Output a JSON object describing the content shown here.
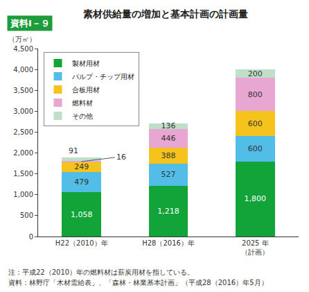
{
  "chart_data": {
    "type": "bar",
    "stacked": true,
    "label": "資料Ⅰ－９",
    "title": "素材供給量の増加と基本計画の計画量",
    "ylabel": "（万㎥）",
    "categories": [
      "H22（2010）年",
      "H28（2016）年",
      "2025 年\n（計画）"
    ],
    "series": [
      {
        "name": "製材用材",
        "color": "#12a339",
        "values": [
          1058,
          1218,
          1800
        ],
        "value_labels": [
          "1,058",
          "1,218",
          "1,800"
        ]
      },
      {
        "name": "パルプ・チップ用材",
        "color": "#52bde6",
        "values": [
          479,
          527,
          600
        ]
      },
      {
        "name": "合板用材",
        "color": "#f5c31c",
        "values": [
          249,
          388,
          600
        ]
      },
      {
        "name": "燃料材",
        "color": "#e8a6d2",
        "values": [
          16,
          446,
          800
        ]
      },
      {
        "name": "その他",
        "color": "#bfe0c8",
        "values": [
          91,
          136,
          200
        ]
      }
    ],
    "ylim": [
      0,
      4500
    ],
    "yticks": [
      0,
      500,
      {
        "value": 1000,
        "label": "1,000"
      },
      {
        "value": 1500,
        "label": "1,500"
      },
      {
        "value": 2000,
        "label": "2,000"
      },
      {
        "value": 2500,
        "label": "2,500"
      },
      {
        "value": 3000,
        "label": "3,000"
      },
      {
        "value": 3500,
        "label": "3,500"
      },
      {
        "value": 4000,
        "label": "4,000"
      },
      {
        "value": 4500,
        "label": "4,500"
      }
    ],
    "grid": false,
    "legend": "top left",
    "data_labels": true,
    "notes": [
      "注：平成22（2010）年の燃料材は薪炭用材を指している。",
      "資料：林野庁「木材需給表」、「森林・林業基本計画」（平成28（2016）年5月）"
    ]
  }
}
